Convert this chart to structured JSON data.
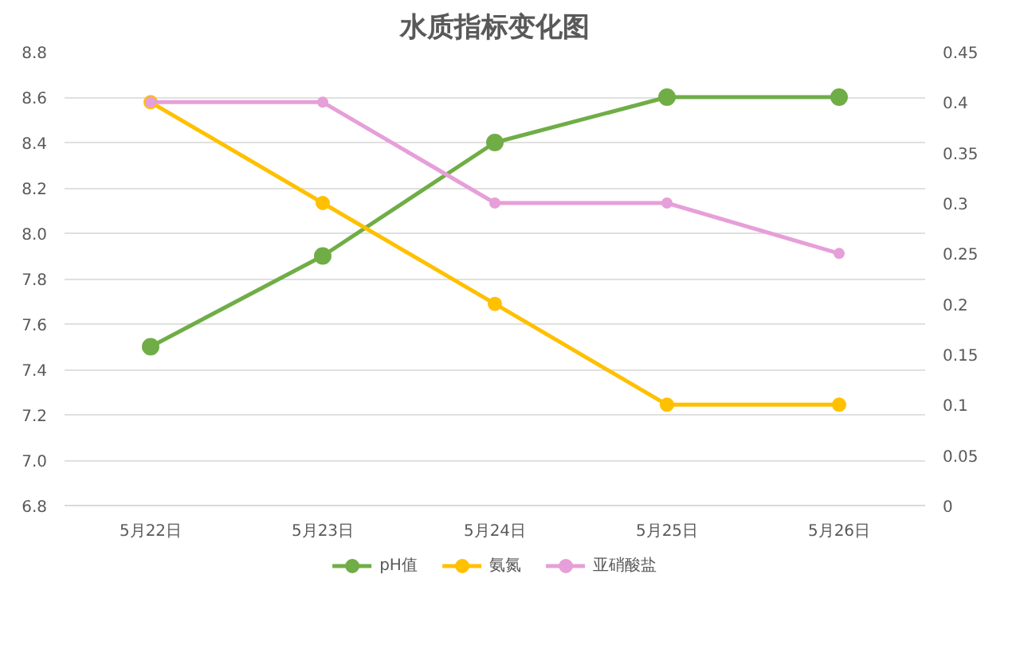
{
  "chart_data": {
    "type": "line",
    "title": "水质指标变化图",
    "categories": [
      "5月22日",
      "5月23日",
      "5月24日",
      "5月25日",
      "5月26日"
    ],
    "series": [
      {
        "name": "pH值",
        "color": "#70ad47",
        "values": [
          7.5,
          7.9,
          8.4,
          8.6,
          8.6
        ]
      },
      {
        "name": "氨氮",
        "color": "#ffc000",
        "values": [
          0.4,
          0.3,
          0.2,
          0.1,
          0.1
        ],
        "axis": "y2"
      },
      {
        "name": "亚硝酸盐",
        "color": "#e69fd8",
        "values": [
          0.4,
          0.4,
          0.3,
          0.3,
          0.25
        ],
        "axis": "y2"
      }
    ],
    "ylim": [
      6.8,
      8.8
    ],
    "yticks": [
      6.8,
      {
        "value": 7,
        "label": "7.0"
      },
      7.2,
      7.4,
      7.6,
      7.8,
      {
        "value": 8,
        "label": "8.0"
      },
      8.2,
      8.4,
      8.6,
      8.8
    ],
    "y2lim": [
      0,
      0.45
    ],
    "y2ticks": [
      0,
      0.05,
      0.1,
      0.15,
      0.2,
      0.25,
      0.3,
      0.35,
      0.4,
      0.45
    ],
    "grid": "y",
    "legend": "bottom",
    "marker": "circle",
    "line_style": "solid"
  }
}
